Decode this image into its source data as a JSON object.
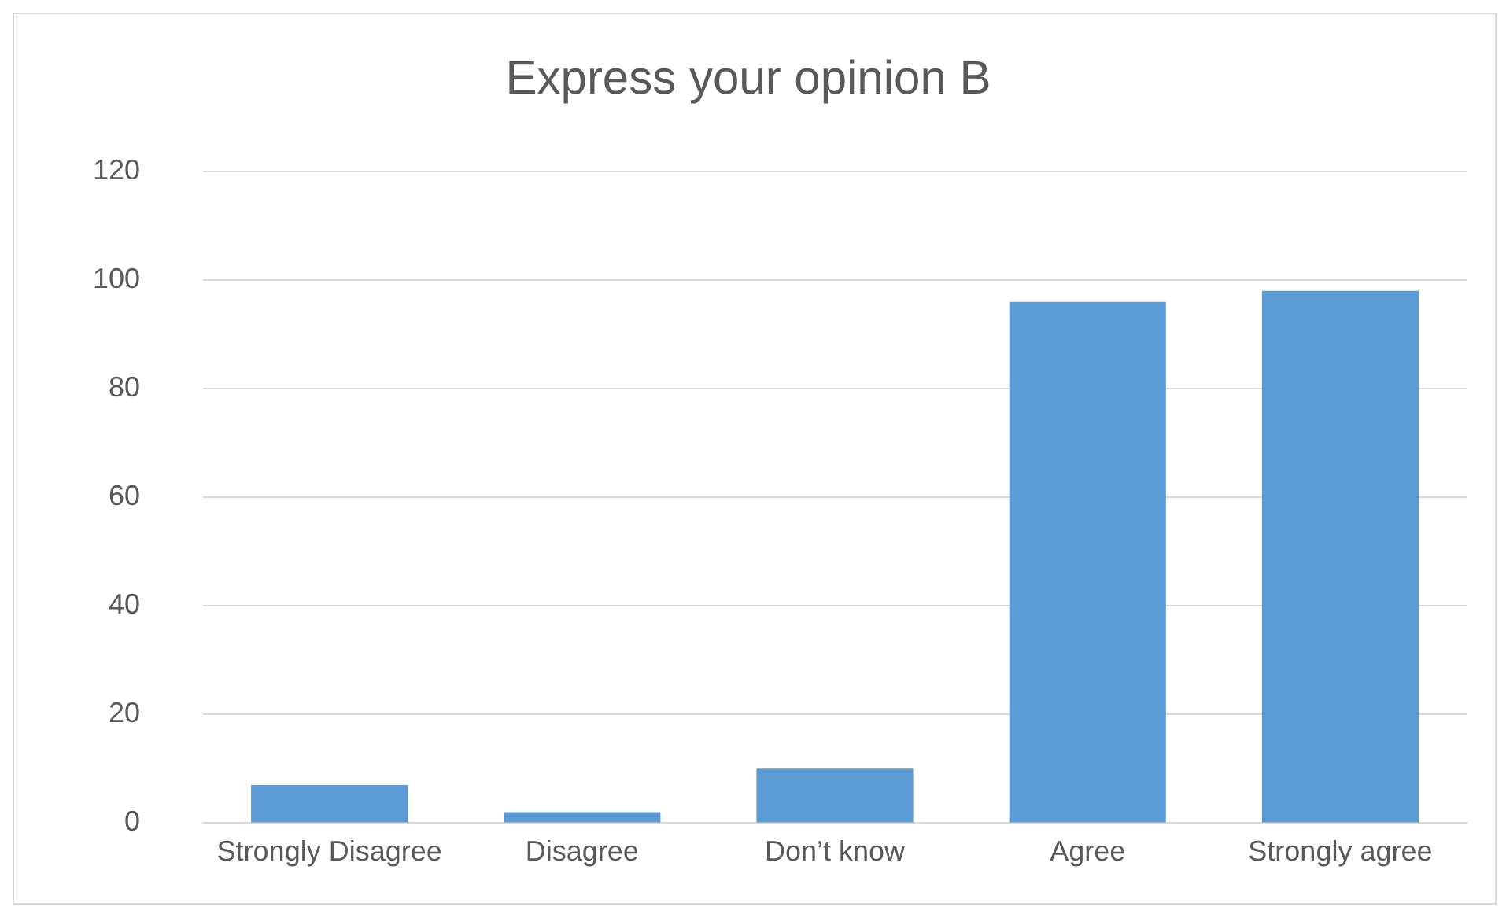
{
  "chart_data": {
    "type": "bar",
    "title": "Express your opinion B",
    "categories": [
      "Strongly Disagree",
      "Disagree",
      "Don’t know",
      "Agree",
      "Strongly agree"
    ],
    "values": [
      7,
      2,
      10,
      96,
      98
    ],
    "color": "#5b9bd5",
    "ylim": [
      0,
      120
    ],
    "yticks": [
      0,
      20,
      40,
      60,
      80,
      100,
      120
    ],
    "grid": "y"
  }
}
